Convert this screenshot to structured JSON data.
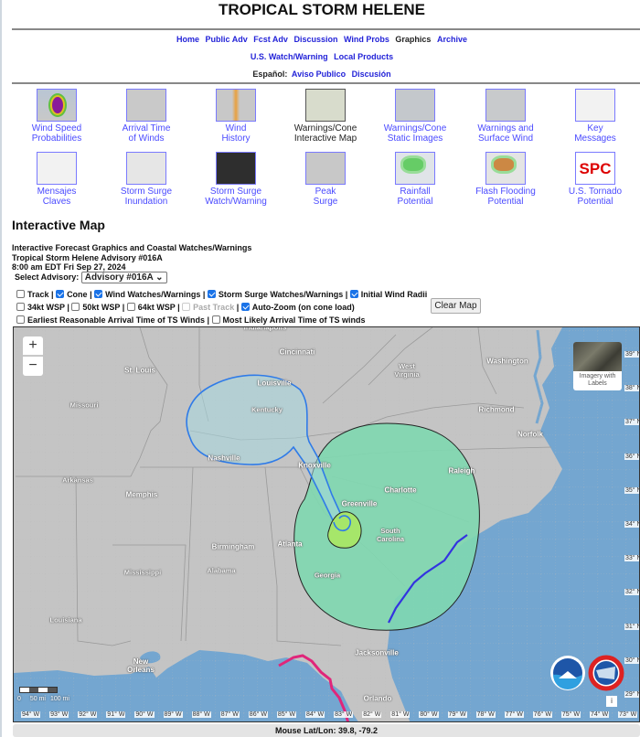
{
  "title": "TROPICAL STORM HELENE",
  "nav": {
    "row1": [
      "Home",
      "Public Adv",
      "Fcst Adv",
      "Discussion",
      "Wind Probs",
      "Graphics",
      "Archive"
    ],
    "current": "Graphics",
    "row2": [
      "U.S. Watch/Warning",
      "Local Products"
    ],
    "espanol_label": "Español:",
    "row3": [
      "Aviso Publico",
      "Discusión"
    ]
  },
  "tiles": [
    {
      "l1": "Wind Speed",
      "l2": "Probabilities"
    },
    {
      "l1": "Arrival Time",
      "l2": "of Winds"
    },
    {
      "l1": "Wind",
      "l2": "History"
    },
    {
      "l1": "Warnings/Cone",
      "l2": "Interactive Map"
    },
    {
      "l1": "Warnings/Cone",
      "l2": "Static Images"
    },
    {
      "l1": "Warnings and",
      "l2": "Surface Wind"
    },
    {
      "l1": "Key",
      "l2": "Messages"
    },
    {
      "l1": "Mensajes",
      "l2": "Claves"
    },
    {
      "l1": "Storm Surge",
      "l2": "Inundation"
    },
    {
      "l1": "Storm Surge",
      "l2": "Watch/Warning"
    },
    {
      "l1": "Peak",
      "l2": "Surge"
    },
    {
      "l1": "Rainfall",
      "l2": "Potential"
    },
    {
      "l1": "Flash Flooding",
      "l2": "Potential"
    },
    {
      "l1": "U.S. Tornado",
      "l2": "Potential"
    }
  ],
  "spc_logo": "SPC",
  "section_title": "Interactive Map",
  "info": {
    "line1": "Interactive Forecast Graphics and Coastal Watches/Warnings",
    "line2": "Tropical Storm Helene Advisory #016A",
    "line3": "8:00 am EDT Fri Sep 27, 2024"
  },
  "advisory": {
    "label": "Select Advisory:",
    "value": "Advisory #016A"
  },
  "options": [
    {
      "label": "Track",
      "checked": false
    },
    {
      "label": "Cone",
      "checked": true
    },
    {
      "label": "Wind Watches/Warnings",
      "checked": true
    },
    {
      "label": "Storm Surge Watches/Warnings",
      "checked": true
    },
    {
      "label": "Initial Wind Radii",
      "checked": true
    },
    {
      "label": "34kt WSP",
      "checked": false
    },
    {
      "label": "50kt WSP",
      "checked": false
    },
    {
      "label": "64kt WSP",
      "checked": false
    },
    {
      "label": "Past Track",
      "checked": false,
      "disabled": true
    },
    {
      "label": "Auto-Zoom (on cone load)",
      "checked": true
    },
    {
      "label": "Earliest Reasonable Arrival Time of TS Winds",
      "checked": false
    },
    {
      "label": "Most Likely Arrival Time of TS winds",
      "checked": false
    }
  ],
  "clear_map": "Clear Map",
  "map": {
    "zoom_in": "+",
    "zoom_out": "−",
    "basemap_toggle": "Imagery with Labels",
    "cities": [
      "Indianapolis",
      "Cincinnati",
      "St. Louis",
      "Louisville",
      "West Virginia",
      "Washington",
      "Missouri",
      "Kentucky",
      "Richmond",
      "Norfolk",
      "Nashville",
      "Knoxville",
      "Raleigh",
      "Arkansas",
      "Memphis",
      "Charlotte",
      "Greenville",
      "Atlanta",
      "South Carolina",
      "Birmingham",
      "Mississippi",
      "Alabama",
      "Georgia",
      "Louisiana",
      "Jacksonville",
      "New Orleans",
      "Orlando"
    ],
    "lat_ticks": [
      "39° N",
      "38° N",
      "37° N",
      "36° N",
      "35° N",
      "34° N",
      "33° N",
      "32° N",
      "31° N",
      "30° N",
      "29° N"
    ],
    "lon_ticks": [
      "94° W",
      "93° W",
      "92° W",
      "91° W",
      "90° W",
      "89° W",
      "88° W",
      "87° W",
      "86° W",
      "85° W",
      "84° W",
      "83° W",
      "82° W",
      "81° W",
      "80° W",
      "79° W",
      "78° W",
      "77° W",
      "76° W",
      "75° W",
      "74° W",
      "73° W"
    ],
    "scale": [
      "0",
      "50 mi",
      "100 mi"
    ],
    "info_button": "i",
    "colors": {
      "land": "#c4c4c4",
      "water": "#74a6d0",
      "cone": "#7fd8b0",
      "cone_outline_blue": "#2f7be8",
      "tropical_storm_warning": "#3333e0",
      "storm_surge_warning": "#e0267a",
      "wind_radii": "#a6e66a"
    }
  },
  "status": "Mouse Lat/Lon: 39.8, -79.2"
}
